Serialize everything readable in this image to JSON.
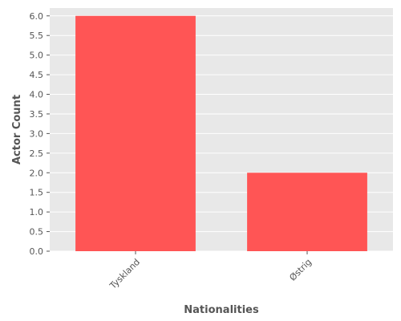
{
  "chart_data": {
    "type": "bar",
    "categories": [
      "Tyskland",
      "Østrig"
    ],
    "values": [
      6,
      2
    ],
    "title": "",
    "xlabel": "Nationalities",
    "ylabel": "Actor Count",
    "ylim": [
      0,
      6.2
    ],
    "yticks": [
      0.0,
      0.5,
      1.0,
      1.5,
      2.0,
      2.5,
      3.0,
      3.5,
      4.0,
      4.5,
      5.0,
      5.5,
      6.0
    ],
    "ytick_labels": [
      "0.0",
      "0.5",
      "1.0",
      "1.5",
      "2.0",
      "2.5",
      "3.0",
      "3.5",
      "4.0",
      "4.5",
      "5.0",
      "5.5",
      "6.0"
    ],
    "grid": true,
    "colors": {
      "bar": "#FF5555",
      "plot_background": "#E8E8E8",
      "grid": "#FFFFFF",
      "text": "#555555"
    }
  }
}
